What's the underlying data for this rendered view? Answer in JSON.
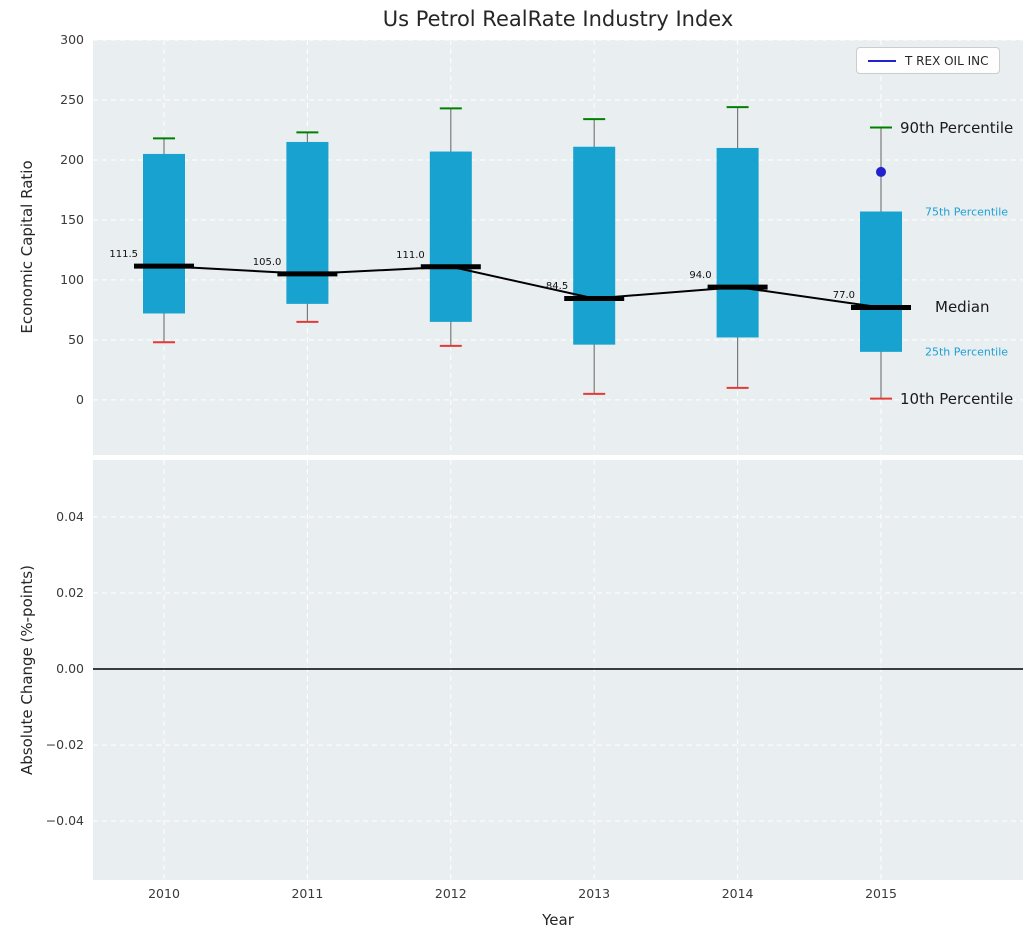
{
  "chart_data": [
    {
      "type": "boxplot",
      "title": "Us Petrol RealRate Industry Index",
      "ylabel": "Economic Capital Ratio",
      "ylim": [
        -46,
        300
      ],
      "yticks": [
        300,
        250,
        200,
        150,
        100,
        50,
        0
      ],
      "ytick_labels": [
        "300",
        "250",
        "200",
        "150",
        "100",
        "50",
        "0"
      ],
      "categories": [
        "2010",
        "2011",
        "2012",
        "2013",
        "2014",
        "2015"
      ],
      "grid": "dashed-white",
      "legend": {
        "label": "T REX OIL INC",
        "position": "upper right"
      },
      "boxes": {
        "p10": [
          48,
          65,
          45,
          5,
          10,
          1
        ],
        "p25": [
          72,
          80,
          65,
          46,
          52,
          40
        ],
        "median": [
          111.5,
          105.0,
          111.0,
          84.5,
          94.0,
          77.0
        ],
        "p75": [
          205,
          215,
          207,
          211,
          210,
          157
        ],
        "p90": [
          218,
          223,
          243,
          234,
          244,
          227
        ]
      },
      "median_labels": [
        "111.5",
        "105.0",
        "111.0",
        "84.5",
        "94.0",
        "77.0"
      ],
      "company_point": {
        "label": "T REX OIL INC",
        "x": "2015",
        "y": 190
      },
      "colors": {
        "box": "#17a2cf",
        "median": "#000000",
        "median_line": "#000000",
        "p90_cap": "#008000",
        "p10_cap": "#e53935",
        "whisker": "#7a7a7a",
        "company": "#2222cc",
        "panel_bg": "#e9eef1"
      },
      "annotations": [
        {
          "text": "90th Percentile",
          "value": 227,
          "color": "#1a1a1a",
          "size": 15
        },
        {
          "text": "75th Percentile",
          "value": 157,
          "color": "#1e9fd4",
          "size": 11
        },
        {
          "text": "Median",
          "value": 77,
          "color": "#1a1a1a",
          "size": 15
        },
        {
          "text": "25th Percentile",
          "value": 40,
          "color": "#1e9fd4",
          "size": 11
        },
        {
          "text": "10th Percentile",
          "value": 1,
          "color": "#1a1a1a",
          "size": 15
        }
      ]
    },
    {
      "type": "line",
      "ylabel": "Absolute Change (%-points)",
      "xlabel": "Year",
      "ylim": [
        -0.0555,
        0.055
      ],
      "yticks": [
        0.04,
        0.02,
        0.0,
        -0.02,
        -0.04
      ],
      "ytick_labels": [
        "0.04",
        "0.02",
        "0.00",
        "−0.02",
        "−0.04"
      ],
      "zero_line": 0.0
    }
  ]
}
